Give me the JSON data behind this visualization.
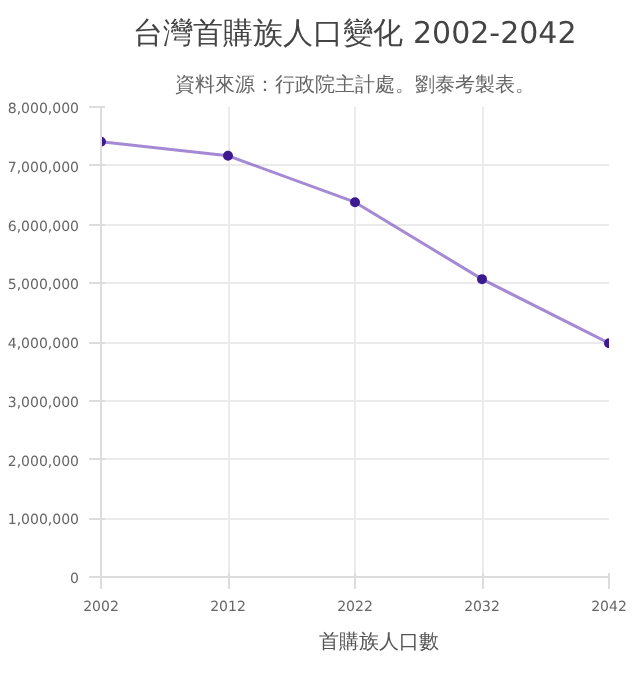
{
  "chart_data": {
    "type": "line",
    "title": "台灣首購族人口變化 2002-2042",
    "subtitle": "資料來源：行政院主計處。劉泰考製表。",
    "categories": [
      "2002",
      "2012",
      "2022",
      "2032",
      "2042"
    ],
    "series": [
      {
        "name": "首購族人口數",
        "color": "#7e57c2",
        "values": [
          7410000,
          7170000,
          6380000,
          5070000,
          3980000
        ]
      }
    ],
    "ylim": [
      0,
      8000000
    ],
    "yticks": [
      {
        "value": 0,
        "label": "0"
      },
      {
        "value": 1000000,
        "label": "1,000,000"
      },
      {
        "value": 2000000,
        "label": "2,000,000"
      },
      {
        "value": 3000000,
        "label": "3,000,000"
      },
      {
        "value": 4000000,
        "label": "4,000,000"
      },
      {
        "value": 5000000,
        "label": "5,000,000"
      },
      {
        "value": 6000000,
        "label": "6,000,000"
      },
      {
        "value": 7000000,
        "label": "7,000,000"
      },
      {
        "value": 8000000,
        "label": "8,000,000"
      }
    ],
    "grid": true,
    "legend": "bottom",
    "marker": "circle",
    "line_style": "solid"
  }
}
